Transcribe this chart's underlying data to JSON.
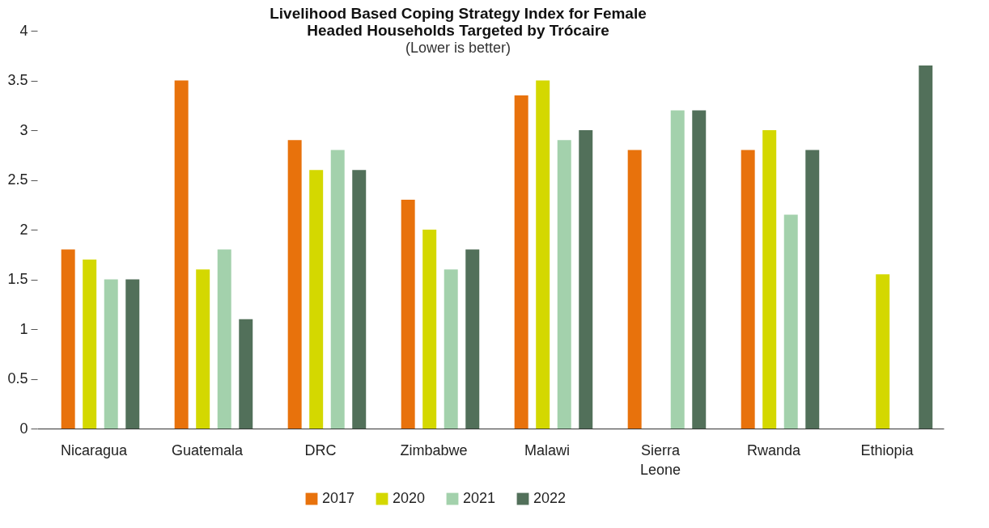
{
  "chart_data": {
    "type": "bar",
    "title": "Livelihood Based Coping Strategy Index for Female Headed Households Targeted by Trócaire",
    "subtitle": "(Lower is better)",
    "categories": [
      "Nicaragua",
      "Guatemala",
      "DRC",
      "Zimbabwe",
      "Malawi",
      "Sierra Leone",
      "Rwanda",
      "Ethiopia"
    ],
    "series": [
      {
        "name": "2017",
        "color": "#e8720c",
        "values": [
          1.8,
          3.5,
          2.9,
          2.3,
          3.35,
          2.8,
          2.8,
          null
        ]
      },
      {
        "name": "2020",
        "color": "#d4d800",
        "values": [
          1.7,
          1.6,
          2.6,
          2.0,
          3.5,
          null,
          3.0,
          1.55
        ]
      },
      {
        "name": "2021",
        "color": "#a3d1ac",
        "values": [
          1.5,
          1.8,
          2.8,
          1.6,
          2.9,
          3.2,
          2.15,
          null
        ]
      },
      {
        "name": "2022",
        "color": "#52705a",
        "values": [
          1.5,
          1.1,
          2.6,
          1.8,
          3.0,
          3.2,
          2.8,
          3.65
        ]
      }
    ],
    "ylim": [
      0,
      4
    ],
    "yticks": [
      0,
      0.5,
      1,
      1.5,
      2,
      2.5,
      3,
      3.5,
      4
    ],
    "grid": false,
    "legend": "bottom"
  }
}
